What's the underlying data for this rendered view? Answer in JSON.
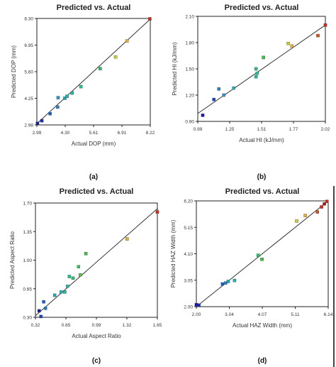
{
  "chart_data": [
    {
      "type": "scatter",
      "panel_label": "(a)",
      "title": "Predicted vs. Actual",
      "xlabel": "Actual DOP (mm)",
      "ylabel": "Predicted DOP (mm)",
      "xlim": [
        2.99,
        8.22
      ],
      "ylim": [
        2.99,
        8.3
      ],
      "xticks": [
        "2.99",
        "4.30",
        "5.61",
        "6.91",
        "8.22"
      ],
      "yticks": [
        "2.98",
        "4.25",
        "5.60",
        "6.95",
        "8.30"
      ],
      "line": [
        [
          2.99,
          3.05
        ],
        [
          8.22,
          8.27
        ]
      ],
      "points": [
        {
          "x": 3.02,
          "y": 3.07,
          "color": "#1a1aa0"
        },
        {
          "x": 3.22,
          "y": 3.2,
          "color": "#1a2ec0"
        },
        {
          "x": 3.6,
          "y": 3.55,
          "color": "#1f5fc8"
        },
        {
          "x": 3.95,
          "y": 3.88,
          "color": "#2a7fc4"
        },
        {
          "x": 3.97,
          "y": 4.35,
          "color": "#2a9ad0"
        },
        {
          "x": 4.28,
          "y": 4.32,
          "color": "#1aa8b8"
        },
        {
          "x": 4.38,
          "y": 4.42,
          "color": "#22b0b0"
        },
        {
          "x": 4.62,
          "y": 4.58,
          "color": "#1cbba0"
        },
        {
          "x": 5.02,
          "y": 4.9,
          "color": "#22c28a"
        },
        {
          "x": 5.91,
          "y": 5.8,
          "color": "#28c058"
        },
        {
          "x": 6.62,
          "y": 6.38,
          "color": "#c8d030"
        },
        {
          "x": 7.15,
          "y": 7.18,
          "color": "#e8b030"
        },
        {
          "x": 8.2,
          "y": 8.28,
          "color": "#d02a1a"
        }
      ]
    },
    {
      "type": "scatter",
      "panel_label": "(b)",
      "title": "Predicted vs. Actual",
      "xlabel": "Actual HI (kJ/mm)",
      "ylabel": "Predicted  HI (kJ/mm)",
      "xlim": [
        0.99,
        2.02
      ],
      "ylim": [
        0.9,
        2.1
      ],
      "xticks": [
        "0.99",
        "1.25",
        "1.51",
        "1.77",
        "2.02"
      ],
      "yticks": [
        "0.90",
        "1.20",
        "1.50",
        "1.80",
        "2.10"
      ],
      "line": [
        [
          0.99,
          0.99
        ],
        [
          2.02,
          2.0
        ]
      ],
      "points": [
        {
          "x": 1.03,
          "y": 0.97,
          "color": "#1a1aa0"
        },
        {
          "x": 1.12,
          "y": 1.15,
          "color": "#1a3ec0"
        },
        {
          "x": 1.16,
          "y": 1.27,
          "color": "#2a7fc4"
        },
        {
          "x": 1.2,
          "y": 1.2,
          "color": "#3a8ad0"
        },
        {
          "x": 1.28,
          "y": 1.28,
          "color": "#22b0b0"
        },
        {
          "x": 1.46,
          "y": 1.41,
          "color": "#1cbba0"
        },
        {
          "x": 1.47,
          "y": 1.45,
          "color": "#22c0a0"
        },
        {
          "x": 1.46,
          "y": 1.5,
          "color": "#28c070"
        },
        {
          "x": 1.52,
          "y": 1.63,
          "color": "#40c040"
        },
        {
          "x": 1.72,
          "y": 1.79,
          "color": "#c8d030"
        },
        {
          "x": 1.75,
          "y": 1.76,
          "color": "#e8b030"
        },
        {
          "x": 1.96,
          "y": 1.88,
          "color": "#d05020"
        },
        {
          "x": 2.02,
          "y": 2.0,
          "color": "#d02a1a"
        }
      ]
    },
    {
      "type": "scatter",
      "panel_label": "(c)",
      "title": "Predicted vs. Actual",
      "xlabel": "Actual Aspect Ratio",
      "ylabel": "Predicted  Aspect Ratio",
      "xlim": [
        0.32,
        1.65
      ],
      "ylim": [
        0.3,
        1.7
      ],
      "xticks": [
        "0.32",
        "0.65",
        "0.99",
        "1.32",
        "1.65"
      ],
      "yticks": [
        "0.30",
        "0.65",
        "1.00",
        "1.35",
        "1.70"
      ],
      "line": [
        [
          0.32,
          0.32
        ],
        [
          1.65,
          1.63
        ]
      ],
      "points": [
        {
          "x": 0.36,
          "y": 0.38,
          "color": "#1a1aa0"
        },
        {
          "x": 0.38,
          "y": 0.31,
          "color": "#1a3ec0"
        },
        {
          "x": 0.41,
          "y": 0.49,
          "color": "#1f5fc8"
        },
        {
          "x": 0.43,
          "y": 0.41,
          "color": "#2a7fc4"
        },
        {
          "x": 0.53,
          "y": 0.57,
          "color": "#1aa8b8"
        },
        {
          "x": 0.6,
          "y": 0.61,
          "color": "#22b0b0"
        },
        {
          "x": 0.64,
          "y": 0.61,
          "color": "#1cbba0"
        },
        {
          "x": 0.67,
          "y": 0.68,
          "color": "#22c0a0"
        },
        {
          "x": 0.69,
          "y": 0.8,
          "color": "#22c28a"
        },
        {
          "x": 0.73,
          "y": 0.78,
          "color": "#28c070"
        },
        {
          "x": 0.79,
          "y": 0.92,
          "color": "#40c060"
        },
        {
          "x": 0.81,
          "y": 0.82,
          "color": "#60c040"
        },
        {
          "x": 0.87,
          "y": 1.08,
          "color": "#40c040"
        },
        {
          "x": 1.32,
          "y": 1.26,
          "color": "#e8b030"
        },
        {
          "x": 1.65,
          "y": 1.59,
          "color": "#d02a1a"
        }
      ]
    },
    {
      "type": "scatter",
      "panel_label": "(d)",
      "title": "Predicted vs. Actual",
      "xlabel": "Actual HAZ Width (mm)",
      "ylabel": "Predicted HAZ Width (mm)",
      "xlim": [
        2.0,
        6.14
      ],
      "ylim": [
        2.0,
        6.2
      ],
      "xticks": [
        "2.00",
        "3.04",
        "4.07",
        "5.11",
        "6.14"
      ],
      "yticks": [
        "2.00",
        "3.05",
        "4.10",
        "5.15",
        "6.20"
      ],
      "line": [
        [
          2.0,
          2.0
        ],
        [
          6.14,
          6.2
        ]
      ],
      "points": [
        {
          "x": 2.0,
          "y": 2.08,
          "color": "#1a1aa0"
        },
        {
          "x": 2.08,
          "y": 2.06,
          "color": "#1a2ec0"
        },
        {
          "x": 2.82,
          "y": 2.9,
          "color": "#1f5fc8"
        },
        {
          "x": 2.92,
          "y": 2.94,
          "color": "#2a7fc4"
        },
        {
          "x": 3.0,
          "y": 3.0,
          "color": "#1aa8b8"
        },
        {
          "x": 3.2,
          "y": 3.04,
          "color": "#22b0b0"
        },
        {
          "x": 3.94,
          "y": 4.04,
          "color": "#28c070"
        },
        {
          "x": 4.06,
          "y": 3.88,
          "color": "#40c040"
        },
        {
          "x": 5.15,
          "y": 5.4,
          "color": "#c8d030"
        },
        {
          "x": 5.42,
          "y": 5.62,
          "color": "#e8b030"
        },
        {
          "x": 5.8,
          "y": 5.76,
          "color": "#d05020"
        },
        {
          "x": 5.93,
          "y": 5.96,
          "color": "#d03020"
        },
        {
          "x": 6.02,
          "y": 6.08,
          "color": "#a01a1a"
        },
        {
          "x": 6.1,
          "y": 6.18,
          "color": "#d02a1a"
        }
      ]
    }
  ]
}
